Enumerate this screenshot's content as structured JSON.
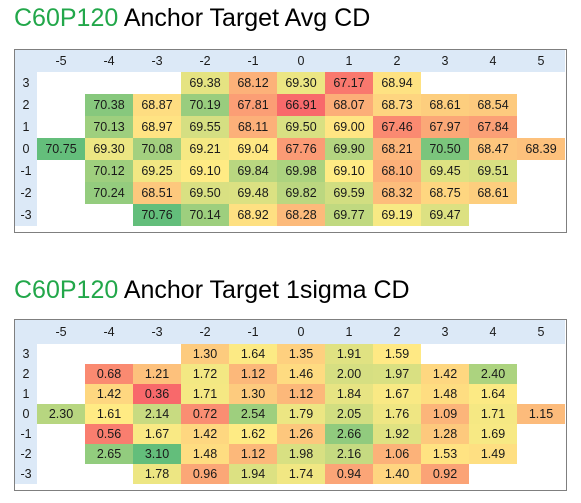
{
  "chart_data": [
    {
      "type": "heatmap",
      "title_code": "C60P120",
      "title_rest": "Anchor Target Avg CD",
      "columns": [
        "-5",
        "-4",
        "-3",
        "-2",
        "-1",
        "0",
        "1",
        "2",
        "3",
        "4",
        "5"
      ],
      "rows": [
        "3",
        "2",
        "1",
        "0",
        "-1",
        "-2",
        "-3"
      ],
      "values": [
        [
          null,
          null,
          null,
          69.38,
          68.12,
          69.3,
          67.17,
          68.94,
          null,
          null,
          null
        ],
        [
          null,
          70.38,
          68.87,
          70.19,
          67.81,
          66.91,
          68.07,
          68.73,
          68.61,
          68.54,
          null
        ],
        [
          null,
          70.13,
          68.97,
          69.55,
          68.11,
          69.5,
          69.0,
          67.46,
          67.97,
          67.84,
          null
        ],
        [
          70.75,
          69.3,
          70.08,
          69.21,
          69.04,
          67.76,
          69.9,
          68.21,
          70.5,
          68.47,
          68.39
        ],
        [
          null,
          70.12,
          69.25,
          69.1,
          69.84,
          69.98,
          69.1,
          68.1,
          69.45,
          69.51,
          null
        ],
        [
          null,
          70.24,
          68.51,
          69.5,
          69.48,
          69.82,
          69.59,
          68.32,
          68.75,
          68.61,
          null
        ],
        [
          null,
          null,
          70.76,
          70.14,
          68.92,
          68.28,
          69.77,
          69.19,
          69.47,
          null,
          null
        ]
      ],
      "labels": [
        [
          null,
          null,
          null,
          "69.38",
          "68.12",
          "69.30",
          "67.17",
          "68.94",
          null,
          null,
          null
        ],
        [
          null,
          "70.38",
          "68.87",
          "70.19",
          "67.81",
          "66.91",
          "68.07",
          "68.73",
          "68.61",
          "68.54",
          null
        ],
        [
          null,
          "70.13",
          "68.97",
          "69.55",
          "68.11",
          "69.50",
          "69.00",
          "67.46",
          "67.97",
          "67.84",
          null
        ],
        [
          "70.75",
          "69.30",
          "70.08",
          "69.21",
          "69.04",
          "67.76",
          "69.90",
          "68.21",
          "70.50",
          "68.47",
          "68.39"
        ],
        [
          null,
          "70.12",
          "69.25",
          "69.10",
          "69.84",
          "69.98",
          "69.10",
          "68.10",
          "69.45",
          "69.51",
          null
        ],
        [
          null,
          "70.24",
          "68.51",
          "69.50",
          "69.48",
          "69.82",
          "69.59",
          "68.32",
          "68.75",
          "68.61",
          null
        ],
        [
          null,
          null,
          "70.76",
          "70.14",
          "68.92",
          "68.28",
          "69.77",
          "69.19",
          "69.47",
          null,
          null
        ]
      ],
      "color_scale": {
        "low": "#f8696b",
        "mid": "#ffeb84",
        "high": "#63be7b"
      }
    },
    {
      "type": "heatmap",
      "title_code": "C60P120",
      "title_rest": "Anchor Target 1sigma CD",
      "columns": [
        "-5",
        "-4",
        "-3",
        "-2",
        "-1",
        "0",
        "1",
        "2",
        "3",
        "4",
        "5"
      ],
      "rows": [
        "3",
        "2",
        "1",
        "0",
        "-1",
        "-2",
        "-3"
      ],
      "values": [
        [
          null,
          null,
          null,
          1.3,
          1.64,
          1.35,
          1.91,
          1.59,
          null,
          null,
          null
        ],
        [
          null,
          0.68,
          1.21,
          1.72,
          1.12,
          1.46,
          2.0,
          1.97,
          1.42,
          2.4,
          null
        ],
        [
          null,
          1.42,
          0.36,
          1.71,
          1.3,
          1.12,
          1.84,
          1.67,
          1.48,
          1.64,
          null
        ],
        [
          2.3,
          1.61,
          2.14,
          0.72,
          2.54,
          1.79,
          2.05,
          1.76,
          1.09,
          1.71,
          1.15
        ],
        [
          null,
          0.56,
          1.67,
          1.42,
          1.62,
          1.26,
          2.66,
          1.92,
          1.28,
          1.69,
          null
        ],
        [
          null,
          2.65,
          3.1,
          1.48,
          1.12,
          1.98,
          2.16,
          1.06,
          1.53,
          1.49,
          null
        ],
        [
          null,
          null,
          1.78,
          0.96,
          1.94,
          1.74,
          0.94,
          1.4,
          0.92,
          null,
          null
        ]
      ],
      "labels": [
        [
          null,
          null,
          null,
          "1.30",
          "1.64",
          "1.35",
          "1.91",
          "1.59",
          null,
          null,
          null
        ],
        [
          null,
          "0.68",
          "1.21",
          "1.72",
          "1.12",
          "1.46",
          "2.00",
          "1.97",
          "1.42",
          "2.40",
          null
        ],
        [
          null,
          "1.42",
          "0.36",
          "1.71",
          "1.30",
          "1.12",
          "1.84",
          "1.67",
          "1.48",
          "1.64",
          null
        ],
        [
          "2.30",
          "1.61",
          "2.14",
          "0.72",
          "2.54",
          "1.79",
          "2.05",
          "1.76",
          "1.09",
          "1.71",
          "1.15"
        ],
        [
          null,
          "0.56",
          "1.67",
          "1.42",
          "1.62",
          "1.26",
          "2.66",
          "1.92",
          "1.28",
          "1.69",
          null
        ],
        [
          null,
          "2.65",
          "3.10",
          "1.48",
          "1.12",
          "1.98",
          "2.16",
          "1.06",
          "1.53",
          "1.49",
          null
        ],
        [
          null,
          null,
          "1.78",
          "0.96",
          "1.94",
          "1.74",
          "0.94",
          "1.40",
          "0.92",
          null,
          null
        ]
      ],
      "color_scale": {
        "low": "#f8696b",
        "mid": "#ffeb84",
        "high": "#63be7b"
      }
    }
  ]
}
